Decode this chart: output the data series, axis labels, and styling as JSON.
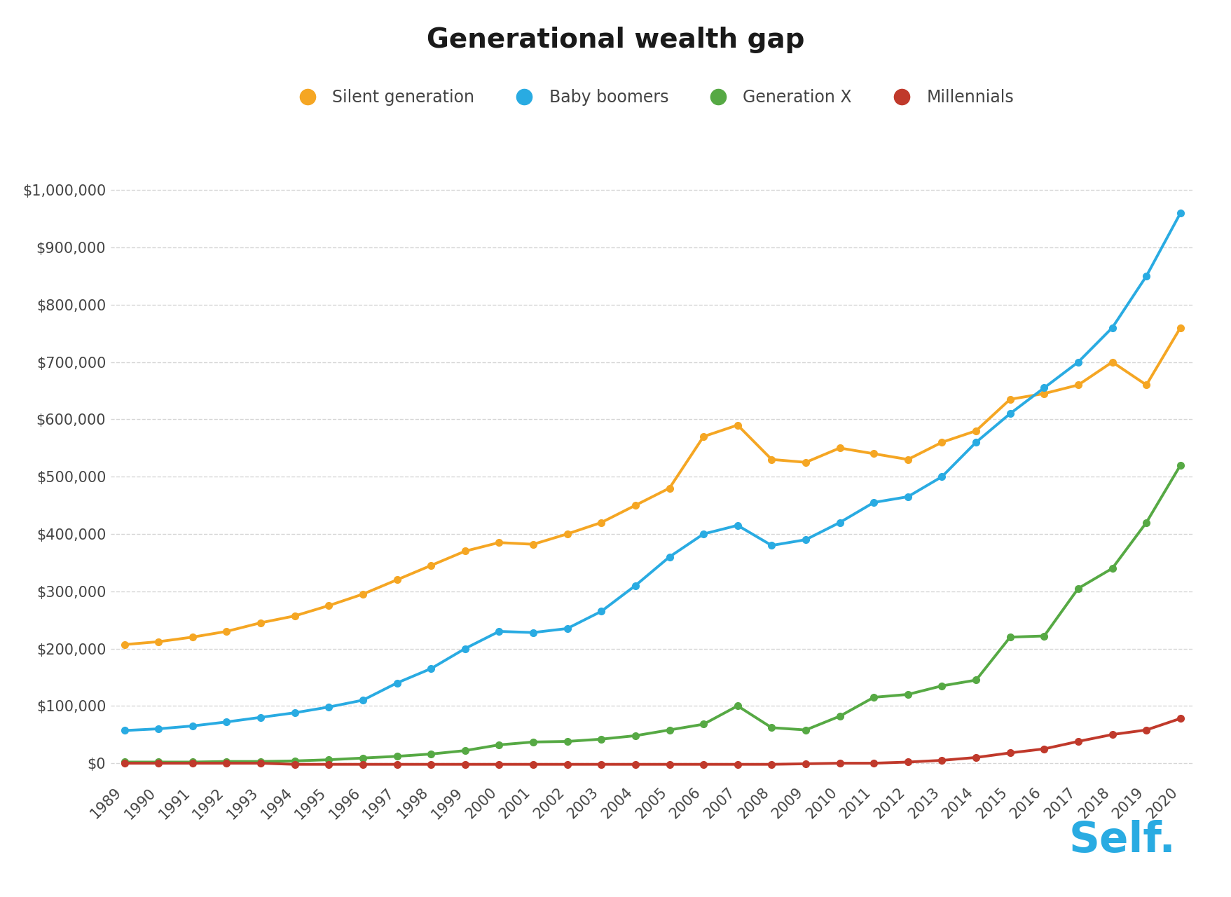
{
  "title": "Generational wealth gap",
  "years": [
    1989,
    1990,
    1991,
    1992,
    1993,
    1994,
    1995,
    1996,
    1997,
    1998,
    1999,
    2000,
    2001,
    2002,
    2003,
    2004,
    2005,
    2006,
    2007,
    2008,
    2009,
    2010,
    2011,
    2012,
    2013,
    2014,
    2015,
    2016,
    2017,
    2018,
    2019,
    2020
  ],
  "silent": [
    207000,
    212000,
    220000,
    230000,
    245000,
    257000,
    275000,
    295000,
    320000,
    345000,
    370000,
    385000,
    382000,
    400000,
    420000,
    450000,
    480000,
    570000,
    590000,
    530000,
    525000,
    550000,
    540000,
    530000,
    560000,
    580000,
    635000,
    645000,
    660000,
    700000,
    660000,
    760000
  ],
  "boomers": [
    57000,
    60000,
    65000,
    72000,
    80000,
    88000,
    98000,
    110000,
    140000,
    165000,
    200000,
    230000,
    228000,
    235000,
    265000,
    310000,
    360000,
    400000,
    415000,
    380000,
    390000,
    420000,
    455000,
    465000,
    500000,
    560000,
    610000,
    655000,
    700000,
    760000,
    850000,
    960000
  ],
  "genx": [
    2000,
    2000,
    2000,
    3000,
    3000,
    4000,
    6000,
    9000,
    12000,
    16000,
    22000,
    32000,
    37000,
    38000,
    42000,
    48000,
    58000,
    68000,
    100000,
    62000,
    58000,
    82000,
    115000,
    120000,
    135000,
    145000,
    220000,
    222000,
    305000,
    340000,
    420000,
    520000
  ],
  "millennials": [
    0,
    0,
    0,
    0,
    0,
    -2000,
    -2000,
    -2000,
    -2000,
    -2000,
    -2000,
    -2000,
    -2000,
    -2000,
    -2000,
    -2000,
    -2000,
    -2000,
    -2000,
    -2000,
    -1000,
    0,
    0,
    2000,
    5000,
    10000,
    18000,
    25000,
    38000,
    50000,
    58000,
    78000
  ],
  "series_labels": [
    "Silent generation",
    "Baby boomers",
    "Generation X",
    "Millennials"
  ],
  "series_colors": [
    "#F5A623",
    "#29ABE2",
    "#56A944",
    "#C0392B"
  ],
  "ylim": [
    -30000,
    1050000
  ],
  "yticks": [
    0,
    100000,
    200000,
    300000,
    400000,
    500000,
    600000,
    700000,
    800000,
    900000,
    1000000
  ],
  "ytick_labels": [
    "$0",
    "$100,000",
    "$200,000",
    "$300,000",
    "$400,000",
    "$500,000",
    "$600,000",
    "$700,000",
    "$800,000",
    "$900,000",
    "$1,000,000"
  ],
  "background_color": "#FFFFFF",
  "grid_color": "#CCCCCC",
  "title_fontsize": 28,
  "legend_fontsize": 17,
  "tick_fontsize": 15,
  "self_logo_color": "#29ABE2",
  "self_logo_text": "Self.",
  "line_width": 2.8,
  "marker_size": 7
}
